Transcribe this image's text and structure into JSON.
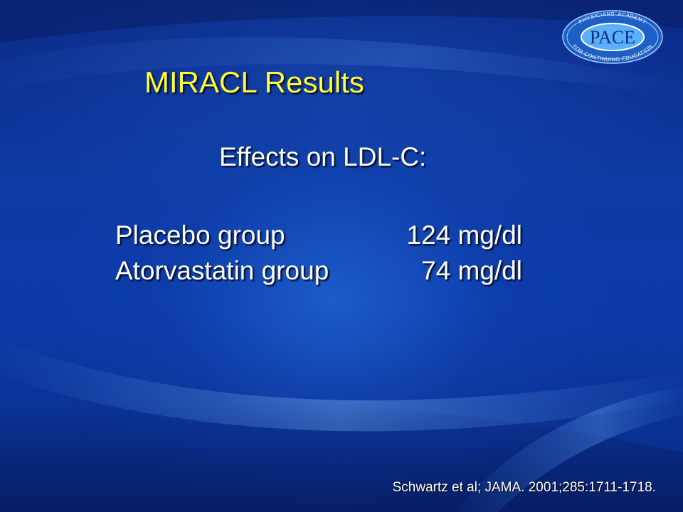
{
  "slide": {
    "title": "MIRACL Results",
    "subtitle": "Effects on LDL-C:",
    "results": [
      {
        "label": "Placebo group",
        "value": "124 mg/dl"
      },
      {
        "label": "Atorvastatin group",
        "value": "74 mg/dl"
      }
    ],
    "citation": "Schwartz et al; JAMA. 2001;285:1711-1718."
  },
  "logo": {
    "ring_text": "PHYSICIANS' ACADEMY FOR CONTINUING EDUCATION",
    "center_text": "PACE"
  },
  "colors": {
    "title": "#ffff33",
    "body_text": "#ffffff",
    "background": "#0d3aa3"
  }
}
